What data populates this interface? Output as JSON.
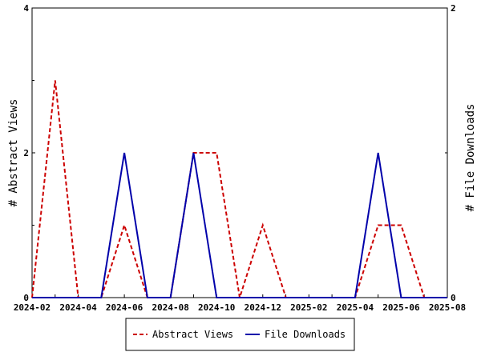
{
  "chart_data": {
    "type": "line",
    "x": [
      "2024-02",
      "2024-03",
      "2024-04",
      "2024-05",
      "2024-06",
      "2024-07",
      "2024-08",
      "2024-09",
      "2024-10",
      "2024-11",
      "2024-12",
      "2025-01",
      "2025-02",
      "2025-03",
      "2025-04",
      "2025-05",
      "2025-06",
      "2025-07",
      "2025-08"
    ],
    "x_tick_labels": [
      "2024-02",
      "2024-04",
      "2024-06",
      "2024-08",
      "2024-10",
      "2024-12",
      "2025-02",
      "2025-04",
      "2025-06",
      "2025-08"
    ],
    "series": [
      {
        "name": "Abstract Views",
        "axis": "left",
        "color": "#cc0000",
        "style": "dashed",
        "values": [
          0,
          3,
          0,
          0,
          1,
          0,
          0,
          2,
          2,
          0,
          1,
          0,
          0,
          0,
          0,
          1,
          1,
          0,
          0
        ]
      },
      {
        "name": "File Downloads",
        "axis": "right",
        "color": "#0000aa",
        "style": "solid",
        "values": [
          0,
          0,
          0,
          0,
          1,
          0,
          0,
          1,
          0,
          0,
          0,
          0,
          0,
          0,
          0,
          1,
          0,
          0,
          0
        ]
      }
    ],
    "y_left": {
      "label": "# Abstract Views",
      "range": [
        0,
        4
      ],
      "ticks": [
        "0",
        "2",
        "4"
      ]
    },
    "y_right": {
      "label": "# File Downloads",
      "range": [
        0,
        2
      ],
      "ticks": [
        "0",
        "2"
      ]
    },
    "legend_position": "bottom-center",
    "grid": false
  }
}
